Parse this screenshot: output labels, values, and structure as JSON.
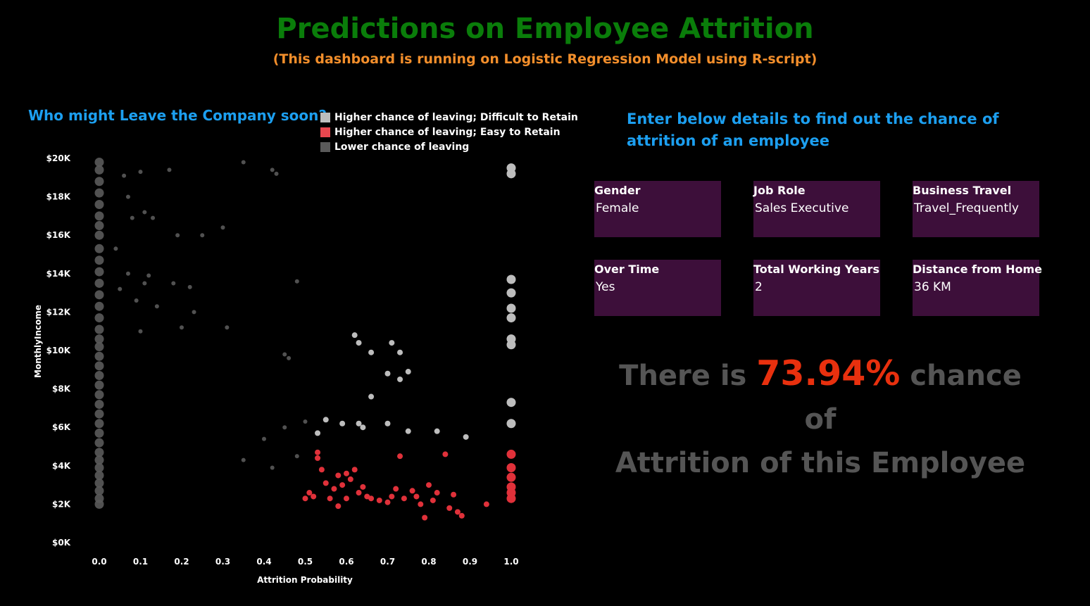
{
  "header": {
    "title": "Predictions on Employee Attrition",
    "subtitle": "(This dashboard is running on Logistic Regression Model using R-script)"
  },
  "chart_section": {
    "heading": "Who might Leave the Company soon?",
    "legend": [
      {
        "label": "Higher chance of leaving; Difficult to Retain",
        "color": "#bdbdbd"
      },
      {
        "label": "Higher chance of leaving; Easy to Retain",
        "color": "#e0313a"
      },
      {
        "label": "Lower chance of leaving",
        "color": "#5a5a5a"
      }
    ]
  },
  "chart_data": {
    "type": "scatter",
    "xlabel": "Attrition Probability",
    "ylabel": "MonthlyIncome",
    "xlim": [
      0,
      1
    ],
    "ylim": [
      0,
      20000
    ],
    "x_ticks": [
      "0.0",
      "0.1",
      "0.2",
      "0.3",
      "0.4",
      "0.5",
      "0.6",
      "0.7",
      "0.8",
      "0.9",
      "1.0"
    ],
    "y_ticks": [
      "$0K",
      "$2K",
      "$4K",
      "$6K",
      "$8K",
      "$10K",
      "$12K",
      "$14K",
      "$16K",
      "$18K",
      "$20K"
    ],
    "grid": false,
    "legend_position": "top-right",
    "series": [
      {
        "name": "Higher chance of leaving; Difficult to Retain",
        "color": "#bdbdbd",
        "points": [
          [
            0.53,
            5700
          ],
          [
            0.55,
            6400
          ],
          [
            0.59,
            6200
          ],
          [
            0.63,
            6200
          ],
          [
            0.64,
            6000
          ],
          [
            0.7,
            6200
          ],
          [
            0.75,
            5800
          ],
          [
            0.82,
            5800
          ],
          [
            0.89,
            5500
          ],
          [
            0.62,
            10800
          ],
          [
            0.63,
            10400
          ],
          [
            0.66,
            9900
          ],
          [
            0.71,
            10400
          ],
          [
            0.73,
            9900
          ],
          [
            0.7,
            8800
          ],
          [
            0.73,
            8500
          ],
          [
            0.75,
            8900
          ],
          [
            0.66,
            7600
          ],
          [
            1.0,
            19500
          ],
          [
            1.0,
            19200
          ],
          [
            1.0,
            13700
          ],
          [
            1.0,
            13000
          ],
          [
            1.0,
            12200
          ],
          [
            1.0,
            11700
          ],
          [
            1.0,
            10600
          ],
          [
            1.0,
            10300
          ],
          [
            1.0,
            7300
          ],
          [
            1.0,
            6200
          ]
        ]
      },
      {
        "name": "Higher chance of leaving; Easy to Retain",
        "color": "#e0313a",
        "points": [
          [
            0.53,
            4700
          ],
          [
            0.53,
            4400
          ],
          [
            0.54,
            3800
          ],
          [
            0.55,
            3100
          ],
          [
            0.57,
            2800
          ],
          [
            0.58,
            3500
          ],
          [
            0.59,
            3000
          ],
          [
            0.6,
            2300
          ],
          [
            0.61,
            3300
          ],
          [
            0.62,
            3800
          ],
          [
            0.63,
            2600
          ],
          [
            0.65,
            2400
          ],
          [
            0.68,
            2200
          ],
          [
            0.7,
            2100
          ],
          [
            0.73,
            4500
          ],
          [
            0.74,
            2300
          ],
          [
            0.76,
            2700
          ],
          [
            0.78,
            2000
          ],
          [
            0.8,
            3000
          ],
          [
            0.82,
            2600
          ],
          [
            0.84,
            4600
          ],
          [
            0.86,
            2500
          ],
          [
            0.87,
            1600
          ],
          [
            0.94,
            2000
          ],
          [
            0.52,
            2400
          ],
          [
            0.51,
            2600
          ],
          [
            0.56,
            2300
          ],
          [
            0.66,
            2300
          ],
          [
            0.71,
            2400
          ],
          [
            0.72,
            2800
          ],
          [
            0.77,
            2400
          ],
          [
            0.79,
            1300
          ],
          [
            0.81,
            2200
          ],
          [
            0.88,
            1400
          ],
          [
            0.5,
            2300
          ],
          [
            0.58,
            1900
          ],
          [
            1.0,
            4600
          ],
          [
            1.0,
            3900
          ],
          [
            1.0,
            3400
          ],
          [
            1.0,
            2900
          ],
          [
            1.0,
            2600
          ],
          [
            1.0,
            2300
          ],
          [
            0.85,
            1800
          ],
          [
            0.6,
            3600
          ],
          [
            0.64,
            2900
          ]
        ]
      },
      {
        "name": "Lower chance of leaving",
        "color": "#5a5a5a",
        "points": [
          [
            0.0,
            19800
          ],
          [
            0.0,
            19400
          ],
          [
            0.0,
            18800
          ],
          [
            0.0,
            18200
          ],
          [
            0.0,
            17600
          ],
          [
            0.0,
            17000
          ],
          [
            0.0,
            16500
          ],
          [
            0.0,
            16000
          ],
          [
            0.0,
            15300
          ],
          [
            0.0,
            14700
          ],
          [
            0.0,
            14100
          ],
          [
            0.0,
            13500
          ],
          [
            0.0,
            12900
          ],
          [
            0.0,
            12300
          ],
          [
            0.0,
            11700
          ],
          [
            0.0,
            11100
          ],
          [
            0.0,
            10600
          ],
          [
            0.0,
            10200
          ],
          [
            0.0,
            9700
          ],
          [
            0.0,
            9200
          ],
          [
            0.0,
            8700
          ],
          [
            0.0,
            8200
          ],
          [
            0.0,
            7700
          ],
          [
            0.0,
            7200
          ],
          [
            0.0,
            6700
          ],
          [
            0.0,
            6200
          ],
          [
            0.0,
            5700
          ],
          [
            0.0,
            5200
          ],
          [
            0.0,
            4700
          ],
          [
            0.0,
            4300
          ],
          [
            0.0,
            3900
          ],
          [
            0.0,
            3500
          ],
          [
            0.0,
            3100
          ],
          [
            0.0,
            2700
          ],
          [
            0.0,
            2300
          ],
          [
            0.0,
            2000
          ],
          [
            0.06,
            19100
          ],
          [
            0.1,
            19300
          ],
          [
            0.17,
            19400
          ],
          [
            0.35,
            19800
          ],
          [
            0.42,
            19400
          ],
          [
            0.43,
            19200
          ],
          [
            0.07,
            18000
          ],
          [
            0.11,
            17200
          ],
          [
            0.08,
            16900
          ],
          [
            0.13,
            16900
          ],
          [
            0.3,
            16400
          ],
          [
            0.19,
            16000
          ],
          [
            0.25,
            16000
          ],
          [
            0.04,
            15300
          ],
          [
            0.07,
            14000
          ],
          [
            0.12,
            13900
          ],
          [
            0.11,
            13500
          ],
          [
            0.18,
            13500
          ],
          [
            0.48,
            13600
          ],
          [
            0.05,
            13200
          ],
          [
            0.22,
            13300
          ],
          [
            0.09,
            12600
          ],
          [
            0.14,
            12300
          ],
          [
            0.23,
            12000
          ],
          [
            0.1,
            11000
          ],
          [
            0.2,
            11200
          ],
          [
            0.31,
            11200
          ],
          [
            0.45,
            9800
          ],
          [
            0.46,
            9600
          ],
          [
            0.4,
            5400
          ],
          [
            0.5,
            6300
          ],
          [
            0.45,
            6000
          ],
          [
            0.48,
            4500
          ],
          [
            0.35,
            4300
          ],
          [
            0.42,
            3900
          ]
        ]
      }
    ]
  },
  "form": {
    "heading": "Enter below details to find out the chance of attrition of an employee",
    "fields": [
      {
        "label": "Gender",
        "value": "Female"
      },
      {
        "label": "Job Role",
        "value": "Sales Executive"
      },
      {
        "label": "Business Travel",
        "value": "Travel_Frequently"
      },
      {
        "label": "Over Time",
        "value": "Yes"
      },
      {
        "label": "Total Working Years",
        "value": "2"
      },
      {
        "label": "Distance from Home",
        "value": "36 KM"
      }
    ]
  },
  "result": {
    "prefix": "There is",
    "percent": "73.94%",
    "suffix_line1": "chance of",
    "line2": "Attrition  of this Employee"
  }
}
